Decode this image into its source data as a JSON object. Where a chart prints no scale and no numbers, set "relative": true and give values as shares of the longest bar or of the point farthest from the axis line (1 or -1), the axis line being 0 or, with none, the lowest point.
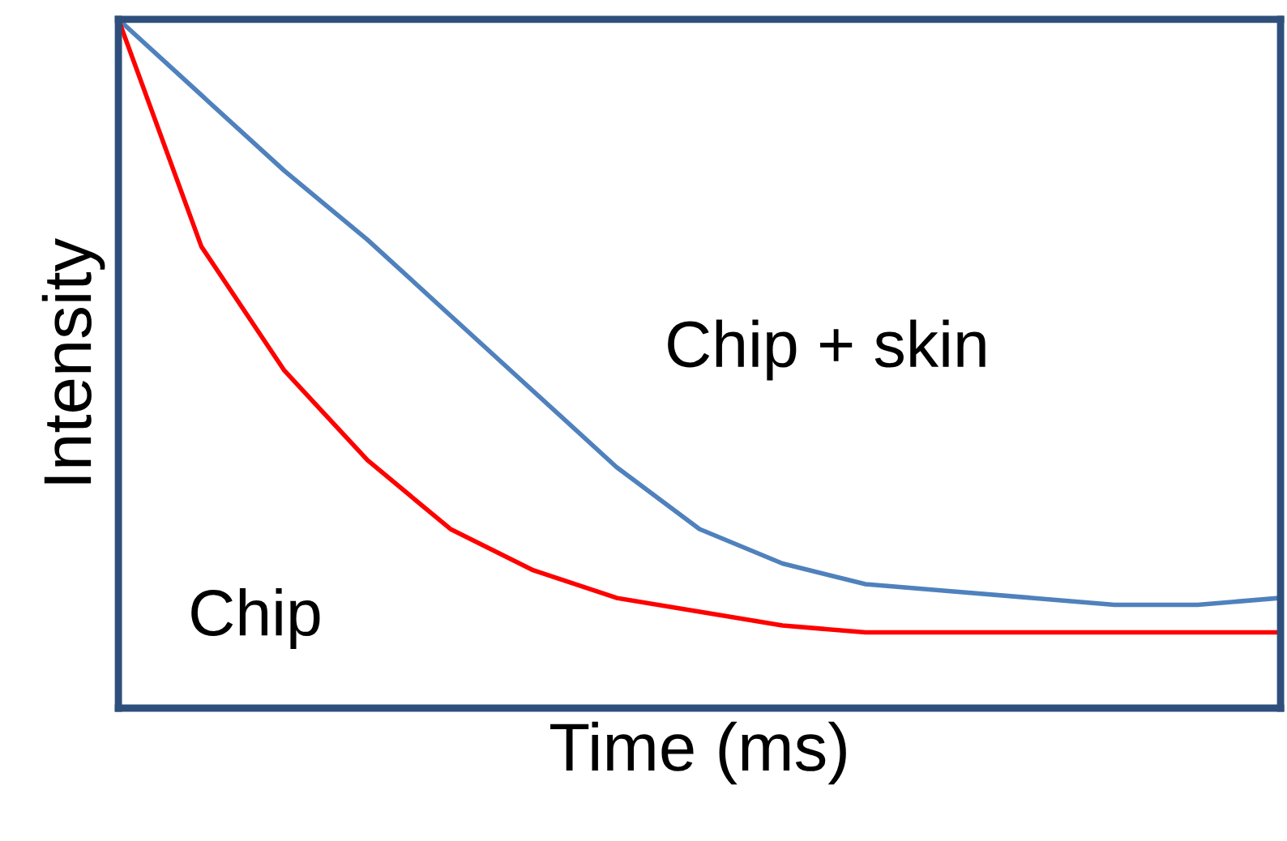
{
  "chart_data": {
    "type": "line",
    "xlabel": "Time (ms)",
    "ylabel": "Intensity",
    "relative": true,
    "legend": false,
    "marker": "none",
    "line_style": "solid",
    "categories": [
      null,
      null,
      null,
      null,
      null,
      null,
      null,
      null,
      null,
      null,
      null,
      null,
      null,
      null,
      null
    ],
    "series": [
      {
        "name": "Chip + skin",
        "color": "#4f81bd",
        "values": [
          1,
          0.89,
          0.78,
          0.68,
          0.57,
          0.46,
          0.35,
          0.26,
          0.21,
          0.18,
          0.17,
          0.16,
          0.15,
          0.15,
          0.16
        ]
      },
      {
        "name": "Chip",
        "color": "#ff0000",
        "values": [
          1,
          0.67,
          0.49,
          0.36,
          0.26,
          0.2,
          0.16,
          0.14,
          0.12,
          0.11,
          0.11,
          0.11,
          0.11,
          0.11,
          0.11
        ]
      }
    ]
  }
}
